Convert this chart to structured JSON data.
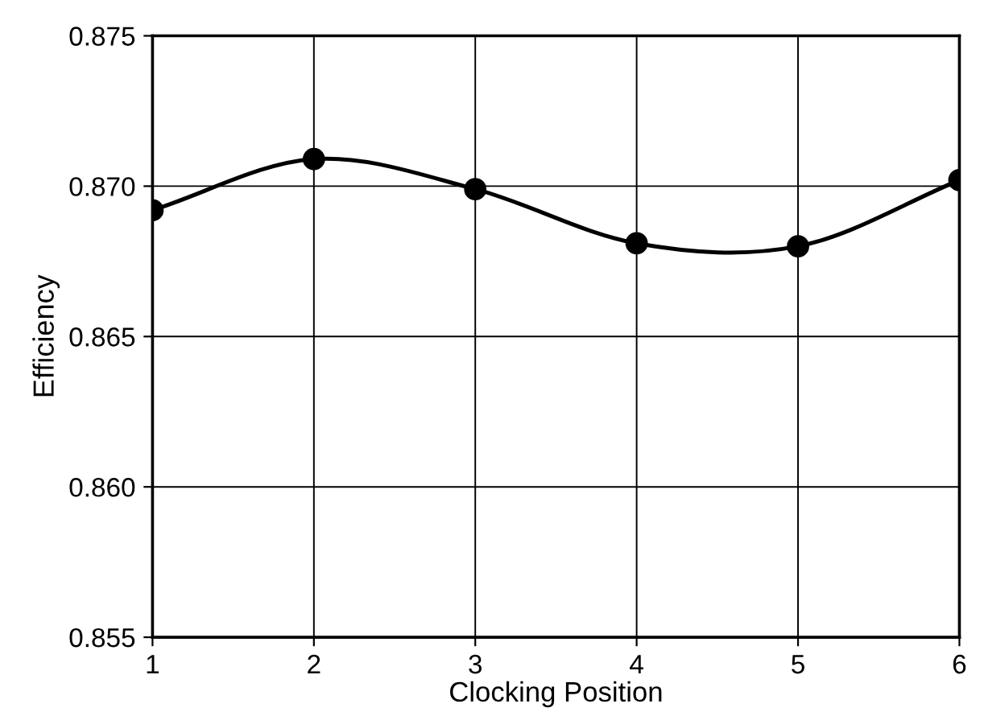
{
  "chart_data": {
    "type": "line",
    "xlabel": "Clocking Position",
    "ylabel": "Efficiency",
    "x": [
      1,
      2,
      3,
      4,
      5,
      6
    ],
    "series": [
      {
        "color": "#000000",
        "values": [
          0.8692,
          0.8709,
          0.8699,
          0.8681,
          0.868,
          0.8702
        ]
      }
    ],
    "xlim": [
      1,
      6
    ],
    "xticks": [
      1,
      2,
      3,
      4,
      5,
      6
    ],
    "ylim": [
      0.855,
      0.875
    ],
    "yticks": [
      {
        "value": 0.855,
        "label": "0.855"
      },
      {
        "value": 0.86,
        "label": "0.860"
      },
      {
        "value": 0.865,
        "label": "0.865"
      },
      {
        "value": 0.87,
        "label": "0.870"
      },
      {
        "value": 0.875,
        "label": "0.875"
      }
    ],
    "grid": true,
    "marker": "circle",
    "line_style": "solid",
    "legend": false
  }
}
